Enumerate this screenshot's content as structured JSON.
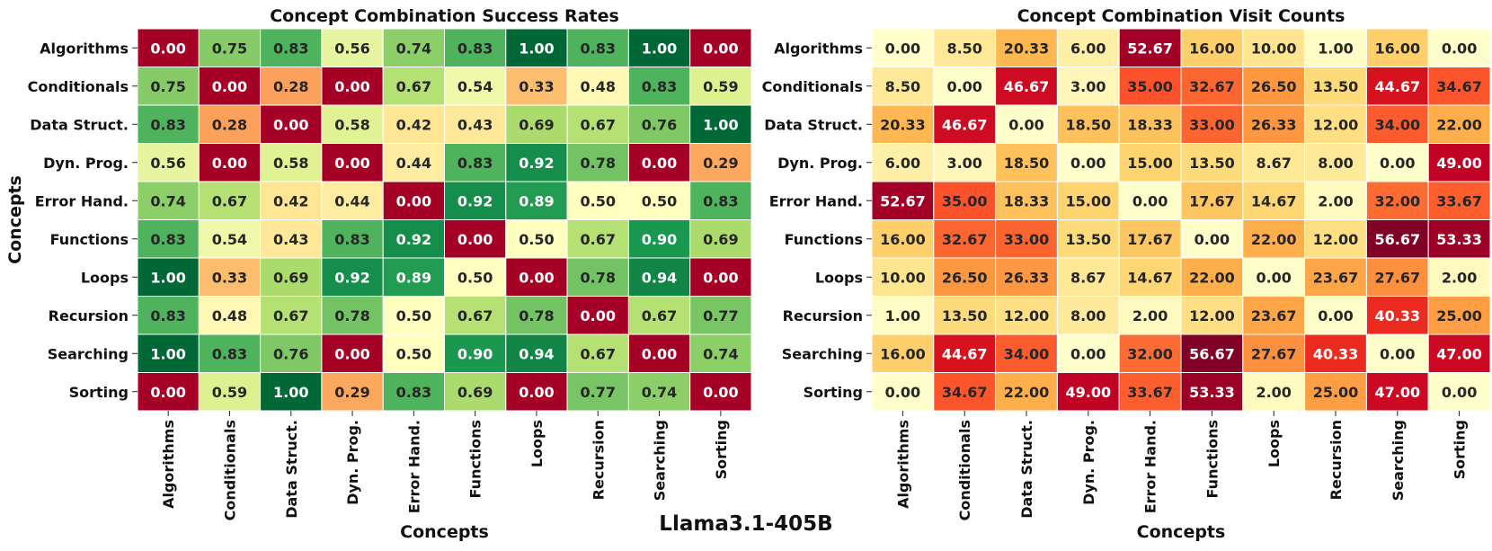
{
  "figure_title": "Llama3.1-405B",
  "chart_data": [
    {
      "type": "heatmap",
      "title": "Concept Combination Success Rates",
      "xlabel": "Concepts",
      "ylabel": "Concepts",
      "x_categories": [
        "Algorithms",
        "Conditionals",
        "Data Struct.",
        "Dyn. Prog.",
        "Error Hand.",
        "Functions",
        "Loops",
        "Recursion",
        "Searching",
        "Sorting"
      ],
      "y_categories": [
        "Algorithms",
        "Conditionals",
        "Data Struct.",
        "Dyn. Prog.",
        "Error Hand.",
        "Functions",
        "Loops",
        "Recursion",
        "Searching",
        "Sorting"
      ],
      "values": [
        [
          0.0,
          0.75,
          0.83,
          0.56,
          0.74,
          0.83,
          1.0,
          0.83,
          1.0,
          0.0
        ],
        [
          0.75,
          0.0,
          0.28,
          0.0,
          0.67,
          0.54,
          0.33,
          0.48,
          0.83,
          0.59
        ],
        [
          0.83,
          0.28,
          0.0,
          0.58,
          0.42,
          0.43,
          0.69,
          0.67,
          0.76,
          1.0
        ],
        [
          0.56,
          0.0,
          0.58,
          0.0,
          0.44,
          0.83,
          0.92,
          0.78,
          0.0,
          0.29
        ],
        [
          0.74,
          0.67,
          0.42,
          0.44,
          0.0,
          0.92,
          0.89,
          0.5,
          0.5,
          0.83
        ],
        [
          0.83,
          0.54,
          0.43,
          0.83,
          0.92,
          0.0,
          0.5,
          0.67,
          0.9,
          0.69
        ],
        [
          1.0,
          0.33,
          0.69,
          0.92,
          0.89,
          0.5,
          0.0,
          0.78,
          0.94,
          0.0
        ],
        [
          0.83,
          0.48,
          0.67,
          0.78,
          0.5,
          0.67,
          0.78,
          0.0,
          0.67,
          0.77
        ],
        [
          1.0,
          0.83,
          0.76,
          0.0,
          0.5,
          0.9,
          0.94,
          0.67,
          0.0,
          0.74
        ],
        [
          0.0,
          0.59,
          1.0,
          0.29,
          0.83,
          0.69,
          0.0,
          0.77,
          0.74,
          0.0
        ]
      ],
      "colormap": "RdYlGn",
      "vmin": 0,
      "vmax": 1
    },
    {
      "type": "heatmap",
      "title": "Concept Combination Visit Counts",
      "xlabel": "Concepts",
      "ylabel": "",
      "x_categories": [
        "Algorithms",
        "Conditionals",
        "Data Struct.",
        "Dyn. Prog.",
        "Error Hand.",
        "Functions",
        "Loops",
        "Recursion",
        "Searching",
        "Sorting"
      ],
      "y_categories": [
        "Algorithms",
        "Conditionals",
        "Data Struct.",
        "Dyn. Prog.",
        "Error Hand.",
        "Functions",
        "Loops",
        "Recursion",
        "Searching",
        "Sorting"
      ],
      "values": [
        [
          0.0,
          8.5,
          20.33,
          6.0,
          52.67,
          16.0,
          10.0,
          1.0,
          16.0,
          0.0
        ],
        [
          8.5,
          0.0,
          46.67,
          3.0,
          35.0,
          32.67,
          26.5,
          13.5,
          44.67,
          34.67
        ],
        [
          20.33,
          46.67,
          0.0,
          18.5,
          18.33,
          33.0,
          26.33,
          12.0,
          34.0,
          22.0
        ],
        [
          6.0,
          3.0,
          18.5,
          0.0,
          15.0,
          13.5,
          8.67,
          8.0,
          0.0,
          49.0
        ],
        [
          52.67,
          35.0,
          18.33,
          15.0,
          0.0,
          17.67,
          14.67,
          2.0,
          32.0,
          33.67
        ],
        [
          16.0,
          32.67,
          33.0,
          13.5,
          17.67,
          0.0,
          22.0,
          12.0,
          56.67,
          53.33
        ],
        [
          10.0,
          26.5,
          26.33,
          8.67,
          14.67,
          22.0,
          0.0,
          23.67,
          27.67,
          2.0
        ],
        [
          1.0,
          13.5,
          12.0,
          8.0,
          2.0,
          12.0,
          23.67,
          0.0,
          40.33,
          25.0
        ],
        [
          16.0,
          44.67,
          34.0,
          0.0,
          32.0,
          56.67,
          27.67,
          40.33,
          0.0,
          47.0
        ],
        [
          0.0,
          34.67,
          22.0,
          49.0,
          33.67,
          53.33,
          2.0,
          25.0,
          47.0,
          0.0
        ]
      ],
      "colormap": "YlOrRd",
      "vmin": 0,
      "vmax": 56.67
    }
  ]
}
